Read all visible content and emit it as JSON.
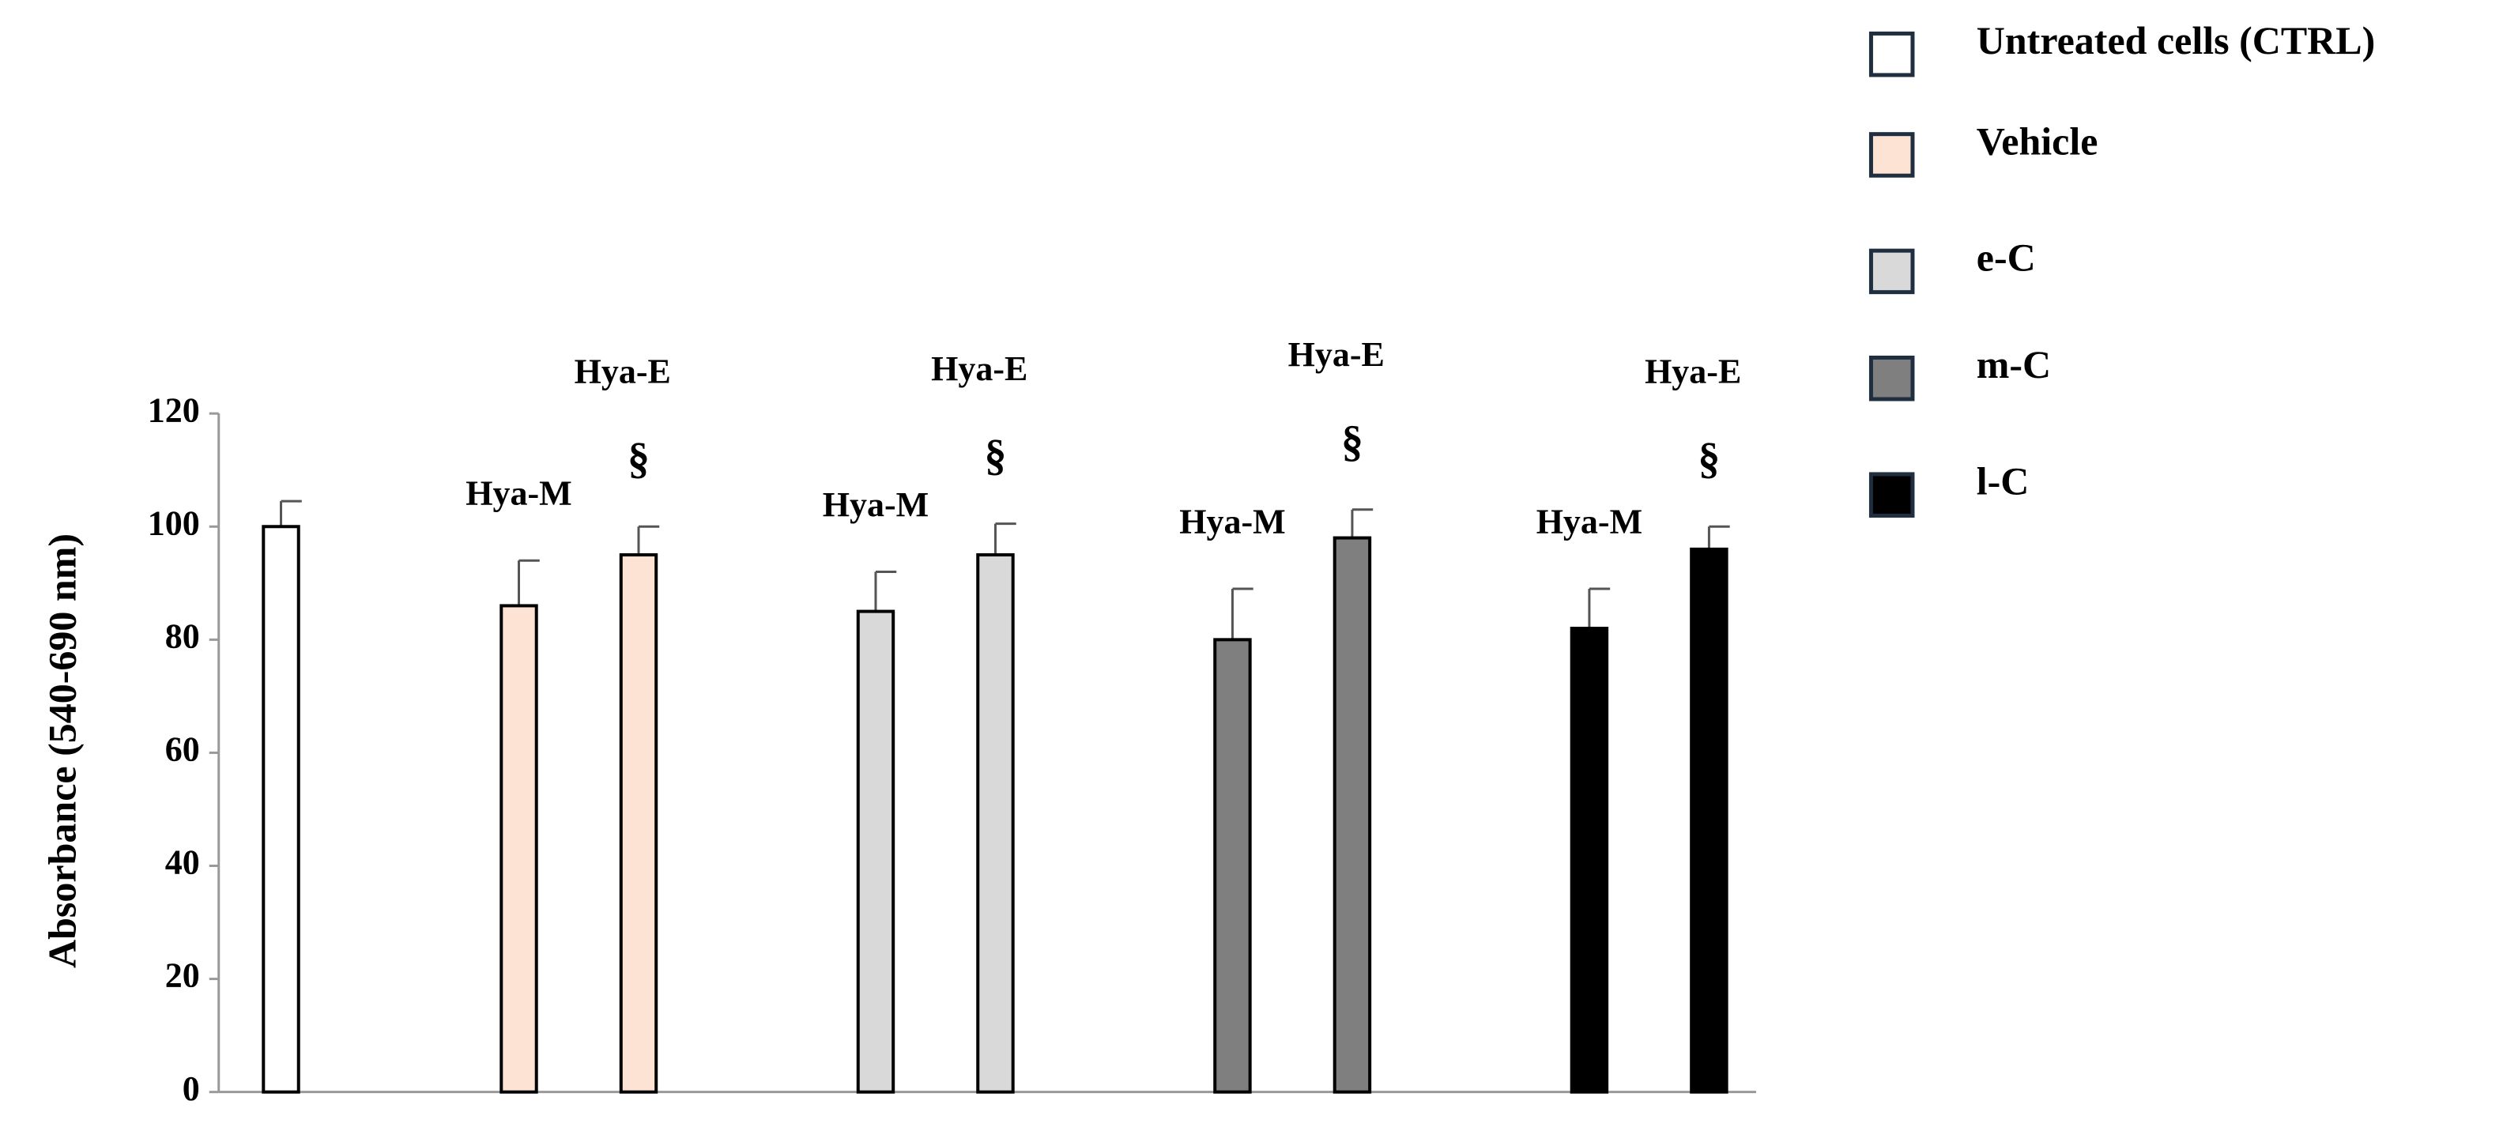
{
  "chart_data": {
    "type": "bar",
    "y_label": "Absorbance (540-690 nm)",
    "ylim": [
      0,
      120
    ],
    "yticks": [
      0,
      20,
      40,
      60,
      80,
      100,
      120
    ],
    "series": [
      {
        "name": "Untreated cells (CTRL)",
        "color": "#ffffff",
        "values": [
          100
        ],
        "errors": [
          4.5
        ]
      },
      {
        "name": "Vehicle",
        "color": "#fde3d4",
        "values": [
          86,
          95
        ],
        "errors": [
          8,
          5
        ],
        "bar_labels": [
          "Hya-M",
          "Hya-E"
        ],
        "significance": [
          null,
          "§"
        ]
      },
      {
        "name": "e-C",
        "color": "#d9d9d9",
        "values": [
          85,
          95
        ],
        "errors": [
          7,
          5.5
        ],
        "bar_labels": [
          "Hya-M",
          "Hya-E"
        ],
        "significance": [
          null,
          "§"
        ]
      },
      {
        "name": "m-C",
        "color": "#7f7f7f",
        "values": [
          80,
          98
        ],
        "errors": [
          9,
          5
        ],
        "bar_labels": [
          "Hya-M",
          "Hya-E"
        ],
        "significance": [
          null,
          "§"
        ]
      },
      {
        "name": "l-C",
        "color": "#000000",
        "values": [
          82,
          96
        ],
        "errors": [
          7,
          4
        ],
        "bar_labels": [
          "Hya-M",
          "Hya-E"
        ],
        "significance": [
          null,
          "§"
        ]
      }
    ]
  }
}
